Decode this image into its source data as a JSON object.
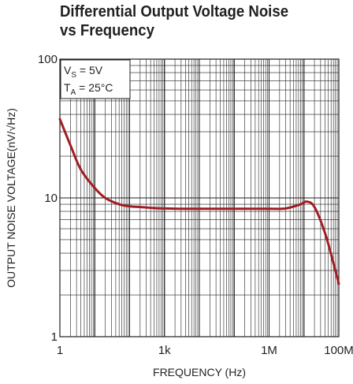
{
  "chart_data": {
    "type": "line",
    "title_lines": [
      "Differential Output Voltage Noise",
      "vs Frequency"
    ],
    "xlabel": "FREQUENCY (Hz)",
    "ylabel": "OUTPUT NOISE VOLTAGE(nV/√Hz)",
    "x_scale": "log",
    "y_scale": "log",
    "xlim": [
      1,
      100000000
    ],
    "ylim": [
      1,
      100
    ],
    "x_ticks": [
      {
        "value": 1,
        "label": "1"
      },
      {
        "value": 1000,
        "label": "1k"
      },
      {
        "value": 1000000,
        "label": "1M"
      },
      {
        "value": 100000000,
        "label": "100M"
      }
    ],
    "y_ticks": [
      {
        "value": 1,
        "label": "1"
      },
      {
        "value": 10,
        "label": "10"
      },
      {
        "value": 100,
        "label": "100"
      }
    ],
    "grid": true,
    "legend": {
      "placement": "top-left",
      "lines": [
        {
          "base": "V",
          "sub": "S",
          "rest": " = 5V"
        },
        {
          "base": "T",
          "sub": "A",
          "rest": " = 25°C"
        }
      ]
    },
    "line_color": "#a01d22",
    "series": [
      {
        "x": [
          1,
          2,
          4,
          10,
          20,
          50,
          100,
          200,
          500,
          1000,
          3000,
          10000,
          100000,
          1000000,
          3000000,
          8000000,
          12000000,
          20000000,
          40000000,
          70000000,
          100000000
        ],
        "y": [
          37,
          24,
          16,
          11.8,
          10,
          9.0,
          8.7,
          8.6,
          8.45,
          8.4,
          8.35,
          8.35,
          8.35,
          8.35,
          8.4,
          9.0,
          9.4,
          8.6,
          5.6,
          3.4,
          2.4
        ]
      }
    ]
  }
}
